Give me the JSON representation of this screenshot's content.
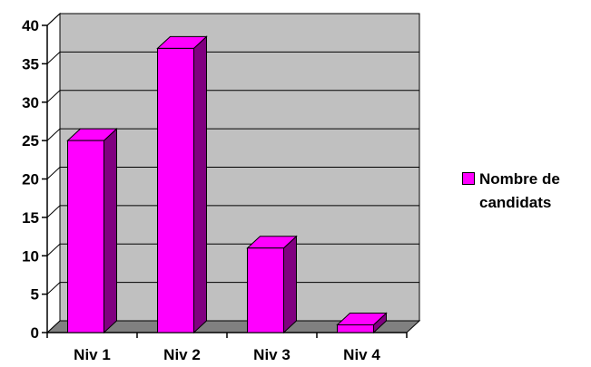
{
  "chart_data": {
    "type": "bar",
    "categories": [
      "Niv 1",
      "Niv 2",
      "Niv 3",
      "Niv 4"
    ],
    "series": [
      {
        "name": "Nombre de\ncandidats",
        "values": [
          25,
          37,
          11,
          1
        ]
      }
    ],
    "ylim": [
      0,
      40
    ],
    "yticks": [
      0,
      5,
      10,
      15,
      20,
      25,
      30,
      35,
      40
    ],
    "grid": true,
    "legend_position": "right",
    "colors": {
      "bar_front": "#FF00FF",
      "bar_side": "#800080",
      "wall": "#C0C0C0",
      "floor": "#808080",
      "gridline": "#000000"
    }
  }
}
